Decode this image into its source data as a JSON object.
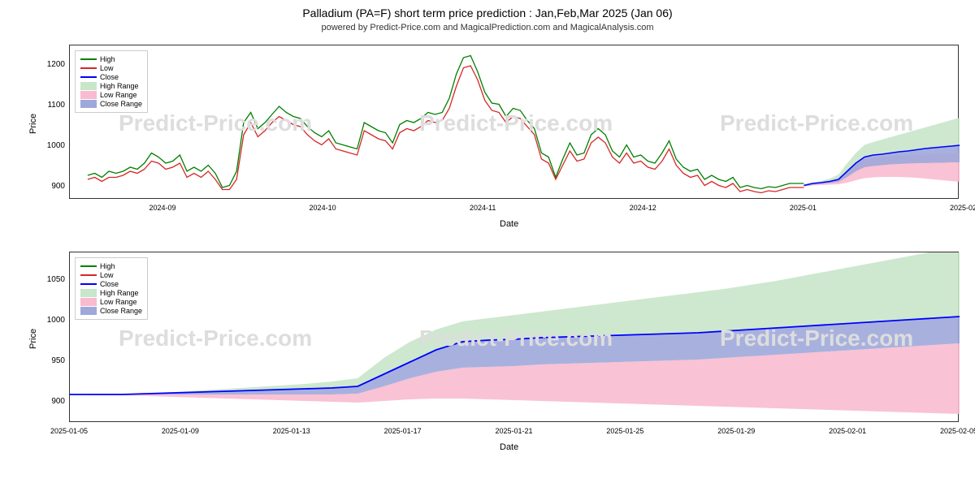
{
  "title": "Palladium (PA=F) short term price prediction : Jan,Feb,Mar 2025 (Jan 06)",
  "subtitle": "powered by Predict-Price.com and MagicalPrediction.com and MagicalAnalysis.com",
  "watermark": "Predict-Price.com",
  "legend": {
    "high": "High",
    "low": "Low",
    "close": "Close",
    "high_range": "High Range",
    "low_range": "Low Range",
    "close_range": "Close Range"
  },
  "colors": {
    "high_line": "#008000",
    "low_line": "#d62728",
    "close_line": "#0000ff",
    "high_range_fill": "#c8e6c9",
    "low_range_fill": "#f8bbd0",
    "close_range_fill": "#9fa8da",
    "grid": "#e0e0e0",
    "watermark": "#dddddd",
    "text": "#333333"
  },
  "chart_top": {
    "type": "line_with_ranges",
    "xlabel": "Date",
    "ylabel": "Price",
    "ylim": [
      870,
      1250
    ],
    "yticks": [
      900,
      1000,
      1100,
      1200
    ],
    "xticks": [
      "2024-09",
      "2024-10",
      "2024-11",
      "2024-12",
      "2025-01",
      "2025-02"
    ],
    "xtick_positions": [
      0.105,
      0.285,
      0.465,
      0.645,
      0.825,
      1.005
    ],
    "data": {
      "x_start": 0.02,
      "x_end": 0.825,
      "high": [
        930,
        935,
        925,
        940,
        935,
        940,
        950,
        945,
        960,
        985,
        975,
        960,
        965,
        980,
        940,
        950,
        940,
        955,
        935,
        900,
        905,
        940,
        1060,
        1085,
        1045,
        1060,
        1080,
        1100,
        1085,
        1075,
        1070,
        1050,
        1035,
        1025,
        1040,
        1010,
        1005,
        1000,
        995,
        1060,
        1050,
        1040,
        1035,
        1010,
        1055,
        1065,
        1060,
        1070,
        1085,
        1080,
        1085,
        1120,
        1180,
        1220,
        1225,
        1185,
        1135,
        1108,
        1105,
        1075,
        1095,
        1090,
        1065,
        1045,
        985,
        975,
        925,
        970,
        1010,
        980,
        985,
        1030,
        1045,
        1030,
        990,
        975,
        1005,
        975,
        980,
        965,
        960,
        985,
        1015,
        970,
        950,
        940,
        945,
        920,
        930,
        920,
        915,
        925,
        900,
        905,
        900,
        897,
        902,
        900,
        905,
        910,
        910,
        910
      ],
      "low": [
        920,
        925,
        915,
        925,
        925,
        930,
        940,
        935,
        945,
        965,
        960,
        945,
        950,
        960,
        925,
        935,
        925,
        940,
        920,
        895,
        895,
        920,
        1030,
        1060,
        1025,
        1040,
        1060,
        1075,
        1065,
        1055,
        1050,
        1030,
        1015,
        1005,
        1020,
        995,
        990,
        985,
        980,
        1040,
        1030,
        1020,
        1015,
        995,
        1035,
        1045,
        1040,
        1050,
        1065,
        1060,
        1065,
        1095,
        1150,
        1195,
        1200,
        1165,
        1115,
        1090,
        1085,
        1060,
        1075,
        1070,
        1050,
        1030,
        970,
        960,
        920,
        955,
        990,
        965,
        970,
        1010,
        1024,
        1010,
        975,
        960,
        985,
        960,
        965,
        950,
        945,
        965,
        995,
        955,
        935,
        925,
        930,
        905,
        915,
        905,
        900,
        910,
        890,
        895,
        890,
        887,
        892,
        890,
        895,
        900,
        900,
        900
      ]
    },
    "forecast": {
      "x_start": 0.825,
      "x_end": 1.01,
      "close": [
        905,
        910,
        912,
        915,
        920,
        940,
        960,
        975,
        980,
        982,
        985,
        988,
        990,
        993,
        996,
        998,
        1000,
        1002,
        1004,
        1006
      ],
      "high_upper": [
        908,
        912,
        916,
        922,
        932,
        960,
        985,
        1005,
        1012,
        1018,
        1024,
        1030,
        1036,
        1042,
        1048,
        1054,
        1060,
        1066,
        1072,
        1078
      ],
      "high_lower": [
        905,
        910,
        912,
        915,
        920,
        940,
        960,
        975,
        980,
        982,
        985,
        988,
        990,
        993,
        996,
        998,
        1000,
        1002,
        1004,
        1006
      ],
      "low_upper": [
        905,
        910,
        912,
        915,
        920,
        940,
        958,
        970,
        973,
        975,
        977,
        979,
        980,
        981,
        982,
        983,
        983,
        984,
        984,
        985
      ],
      "low_lower": [
        902,
        905,
        906,
        907,
        908,
        912,
        918,
        923,
        925,
        926,
        926,
        926,
        925,
        924,
        922,
        920,
        918,
        916,
        914,
        912
      ],
      "close_upper": [
        905,
        910,
        912,
        915,
        920,
        940,
        960,
        975,
        980,
        982,
        985,
        988,
        990,
        993,
        996,
        998,
        1000,
        1002,
        1004,
        1006
      ],
      "close_lower": [
        903,
        907,
        909,
        911,
        914,
        926,
        940,
        950,
        953,
        955,
        957,
        958,
        959,
        960,
        960,
        961,
        961,
        962,
        962,
        963
      ]
    }
  },
  "chart_bottom": {
    "type": "forecast_ranges",
    "xlabel": "Date",
    "ylabel": "Price",
    "ylim": [
      875,
      1085
    ],
    "yticks": [
      900,
      950,
      1000,
      1050
    ],
    "xticks": [
      "2025-01-05",
      "2025-01-09",
      "2025-01-13",
      "2025-01-17",
      "2025-01-21",
      "2025-01-25",
      "2025-01-29",
      "2025-02-01",
      "2025-02-05"
    ],
    "xtick_positions": [
      0.0,
      0.125,
      0.25,
      0.375,
      0.5,
      0.625,
      0.75,
      0.875,
      1.0
    ],
    "data": {
      "close": [
        910,
        910,
        910,
        911,
        912,
        913,
        914,
        915,
        916,
        917,
        918,
        920,
        935,
        950,
        965,
        975,
        977,
        978,
        980,
        981,
        982,
        983,
        984,
        985,
        986,
        988,
        990,
        992,
        994,
        996,
        998,
        1000,
        1002,
        1004,
        1006
      ],
      "high_upper": [
        910,
        910,
        911,
        912,
        913,
        915,
        917,
        919,
        921,
        923,
        926,
        930,
        955,
        975,
        990,
        1000,
        1004,
        1008,
        1012,
        1016,
        1020,
        1024,
        1028,
        1032,
        1036,
        1040,
        1045,
        1050,
        1056,
        1062,
        1068,
        1074,
        1080,
        1086,
        1092
      ],
      "high_lower": [
        910,
        910,
        910,
        911,
        912,
        913,
        914,
        915,
        916,
        917,
        918,
        920,
        935,
        950,
        965,
        975,
        977,
        978,
        980,
        981,
        982,
        983,
        984,
        985,
        986,
        988,
        990,
        992,
        994,
        996,
        998,
        1000,
        1002,
        1004,
        1006
      ],
      "close_upper": [
        910,
        910,
        910,
        911,
        912,
        913,
        914,
        915,
        916,
        917,
        918,
        920,
        935,
        950,
        965,
        975,
        977,
        978,
        980,
        981,
        982,
        983,
        984,
        985,
        986,
        988,
        990,
        992,
        994,
        996,
        998,
        1000,
        1002,
        1004,
        1006
      ],
      "close_lower": [
        910,
        910,
        910,
        910,
        910,
        910,
        910,
        910,
        910,
        910,
        910,
        911,
        920,
        930,
        938,
        943,
        944,
        945,
        947,
        948,
        949,
        950,
        951,
        952,
        953,
        955,
        957,
        959,
        961,
        963,
        965,
        967,
        969,
        971,
        973
      ],
      "low_upper": [
        910,
        910,
        910,
        910,
        910,
        910,
        910,
        910,
        910,
        910,
        910,
        911,
        920,
        930,
        938,
        943,
        944,
        945,
        947,
        948,
        949,
        950,
        951,
        952,
        953,
        955,
        957,
        959,
        961,
        963,
        965,
        967,
        969,
        971,
        973
      ],
      "low_lower": [
        910,
        909,
        909,
        908,
        907,
        906,
        905,
        904,
        903,
        902,
        901,
        900,
        902,
        904,
        905,
        905,
        904,
        903,
        902,
        901,
        900,
        899,
        898,
        897,
        896,
        895,
        894,
        893,
        892,
        891,
        890,
        889,
        888,
        887,
        886
      ]
    }
  }
}
